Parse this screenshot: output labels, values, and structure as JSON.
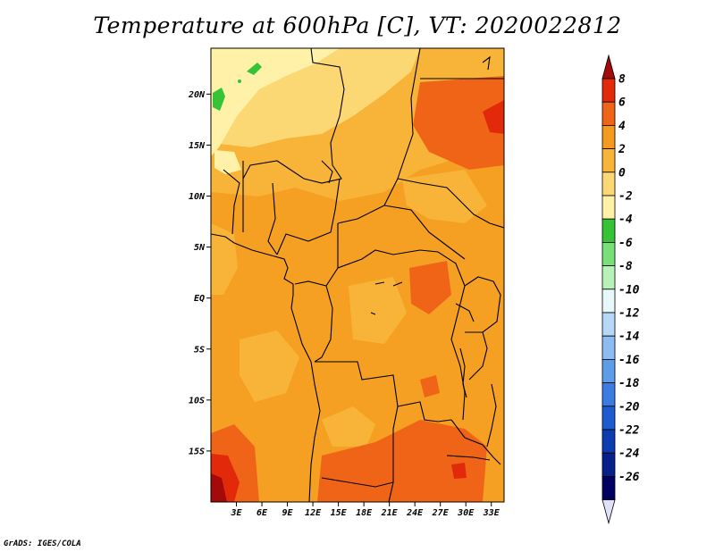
{
  "title": "Temperature at 600hPa [C], VT: 2020022812",
  "credit": "GrADS: IGES/COLA",
  "map": {
    "lon_range": [
      0,
      34.5
    ],
    "lat_range": [
      -20,
      24.5
    ],
    "lat_ticks": [
      {
        "value": 20,
        "label": "20N"
      },
      {
        "value": 15,
        "label": "15N"
      },
      {
        "value": 10,
        "label": "10N"
      },
      {
        "value": 5,
        "label": "5N"
      },
      {
        "value": 0,
        "label": "EQ"
      },
      {
        "value": -5,
        "label": "5S"
      },
      {
        "value": -10,
        "label": "10S"
      },
      {
        "value": -15,
        "label": "15S"
      }
    ],
    "lon_ticks": [
      {
        "value": 3,
        "label": "3E"
      },
      {
        "value": 6,
        "label": "6E"
      },
      {
        "value": 9,
        "label": "9E"
      },
      {
        "value": 12,
        "label": "12E"
      },
      {
        "value": 15,
        "label": "15E"
      },
      {
        "value": 18,
        "label": "18E"
      },
      {
        "value": 21,
        "label": "21E"
      },
      {
        "value": 24,
        "label": "24E"
      },
      {
        "value": 27,
        "label": "27E"
      },
      {
        "value": 30,
        "label": "30E"
      },
      {
        "value": 33,
        "label": "33E"
      }
    ]
  },
  "colorbar": {
    "labels": [
      "8",
      "6",
      "4",
      "2",
      "0",
      "-2",
      "-4",
      "-6",
      "-8",
      "-10",
      "-12",
      "-14",
      "-16",
      "-18",
      "-20",
      "-22",
      "-24",
      "-26"
    ],
    "colors_top_to_bottom": [
      "#a50a0a",
      "#e22a0a",
      "#f06418",
      "#f59a20",
      "#f8b438",
      "#fcd874",
      "#fff2a8",
      "#36c436",
      "#78e078",
      "#b8f2b8",
      "#e6f8f8",
      "#b4d8f6",
      "#8cbcf2",
      "#5c9ce8",
      "#3c7ce0",
      "#1c5cd0",
      "#0c3cb0",
      "#08208c",
      "#000060",
      "#e0e0f8"
    ]
  }
}
